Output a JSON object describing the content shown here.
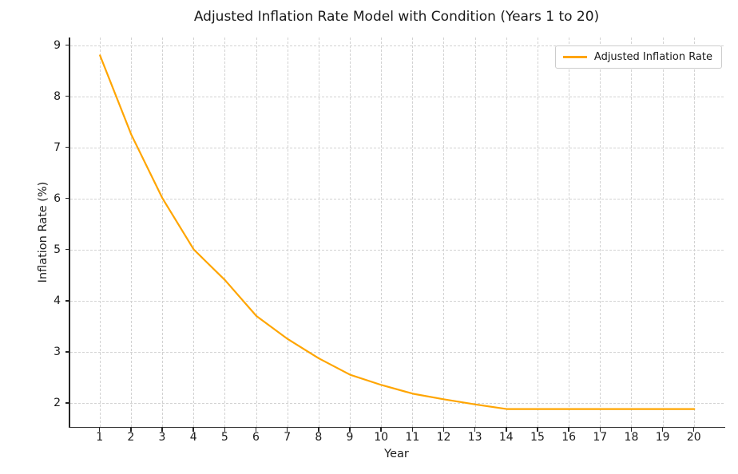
{
  "chart_data": {
    "type": "line",
    "title": "Adjusted Inflation Rate Model with Condition (Years 1 to 20)",
    "xlabel": "Year",
    "ylabel": "Inflation Rate (%)",
    "x": [
      1,
      2,
      3,
      4,
      5,
      6,
      7,
      8,
      9,
      10,
      11,
      12,
      13,
      14,
      15,
      16,
      17,
      18,
      19,
      20
    ],
    "series": [
      {
        "name": "Adjusted Inflation Rate",
        "color": "#FFA500",
        "values": [
          8.8,
          7.25,
          6.0,
          5.0,
          4.4,
          3.7,
          3.25,
          2.87,
          2.55,
          2.35,
          2.18,
          2.07,
          1.97,
          1.88,
          1.88,
          1.88,
          1.88,
          1.88,
          1.88,
          1.88
        ]
      }
    ],
    "xticks": [
      1,
      2,
      3,
      4,
      5,
      6,
      7,
      8,
      9,
      10,
      11,
      12,
      13,
      14,
      15,
      16,
      17,
      18,
      19,
      20
    ],
    "yticks": [
      2,
      3,
      4,
      5,
      6,
      7,
      8,
      9
    ],
    "xlim": [
      0.05,
      20.95
    ],
    "ylim": [
      1.53,
      9.15
    ],
    "grid": true,
    "grid_style": "dashed",
    "legend_position": "upper right"
  },
  "legend": {
    "label": "Adjusted Inflation Rate"
  },
  "colors": {
    "line": "#FFA500",
    "grid": "#d2d2d2",
    "spine": "#262626",
    "text": "#1a1a1a",
    "background": "#ffffff",
    "legend_border": "#cccccc"
  }
}
